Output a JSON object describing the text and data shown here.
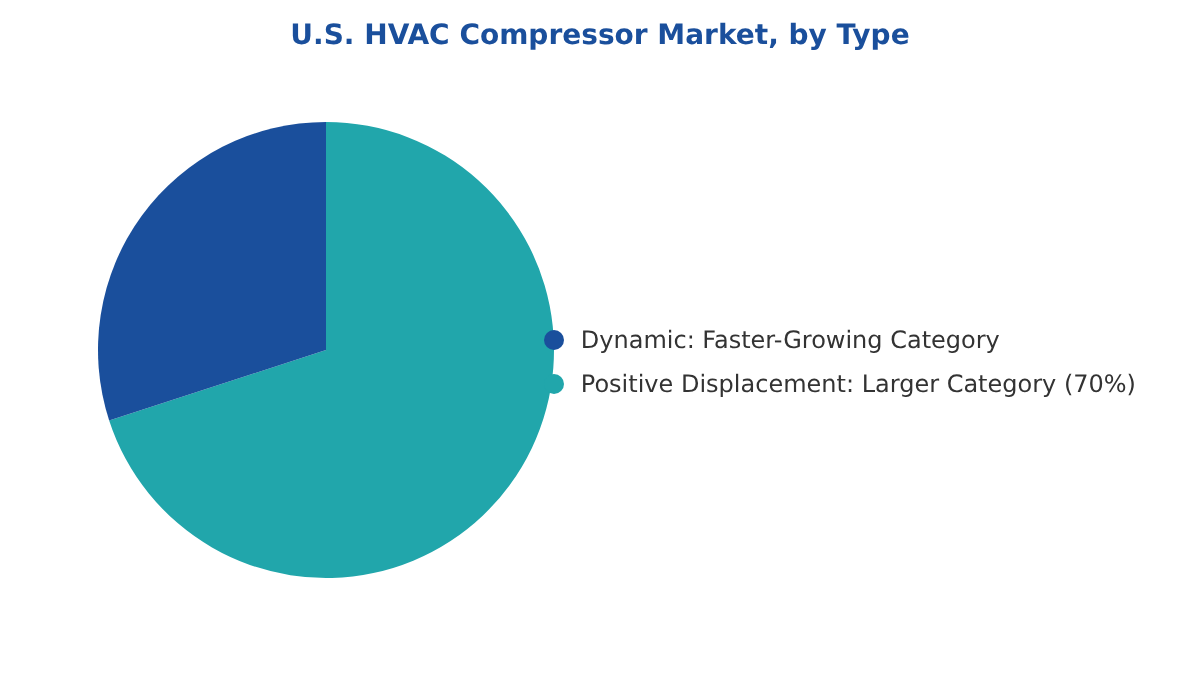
{
  "chart_data": {
    "type": "pie",
    "title": "U.S. HVAC Compressor Market, by Type",
    "categories": [
      "Positive Displacement:  Larger Category (70%)",
      "Dynamic:  Faster-Growing Category"
    ],
    "values": [
      70,
      30
    ],
    "colors": [
      "#21a6ab",
      "#1a4f9c"
    ],
    "legend": "right"
  }
}
